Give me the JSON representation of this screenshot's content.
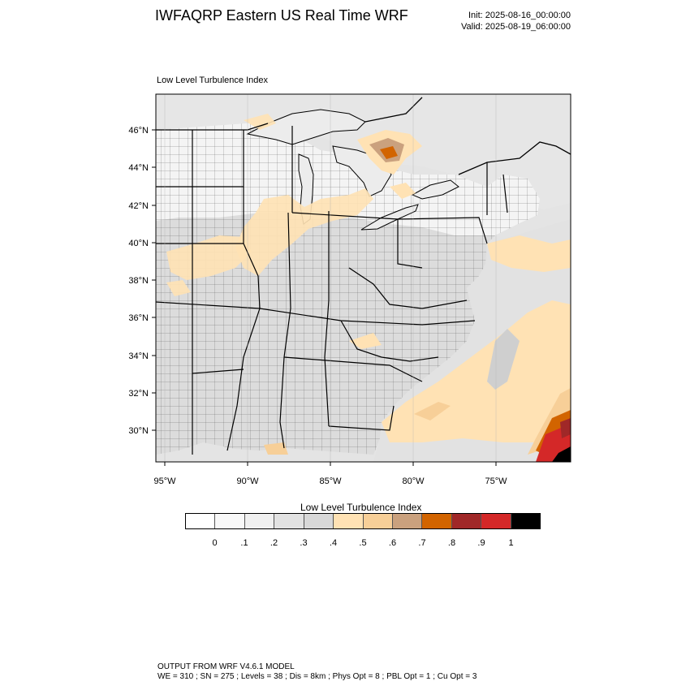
{
  "header": {
    "title": "IWFAQRP Eastern US Real Time WRF",
    "init": "Init: 2025-08-16_00:00:00",
    "valid": "Valid: 2025-08-19_06:00:00"
  },
  "map": {
    "title": "Low Level Turbulence Index",
    "lat_labels": [
      "46°N",
      "44°N",
      "42°N",
      "40°N",
      "38°N",
      "36°N",
      "34°N",
      "32°N",
      "30°N"
    ],
    "lon_labels": [
      "95°W",
      "90°W",
      "85°W",
      "80°W",
      "75°W"
    ],
    "colors": {
      "land": "#dcdcdc",
      "water": "#e4e4e4",
      "light_land": "#f4f4f4",
      "low": "#ffe2b4",
      "mid": "#f7cf98",
      "tan": "#caa17e",
      "orange": "#d26400",
      "brown": "#a02828",
      "red": "#d42828",
      "black": "#000000"
    }
  },
  "colorbar": {
    "title": "Low Level Turbulence Index",
    "colors": [
      "#ffffff",
      "#f8f8f8",
      "#f0f0f0",
      "#e2e2e2",
      "#d8d8d8",
      "#ffe2b4",
      "#f7cf98",
      "#caa17e",
      "#d26400",
      "#a02828",
      "#d42828",
      "#000000"
    ],
    "ticks": [
      "0",
      ".1",
      ".2",
      ".3",
      ".4",
      ".5",
      ".6",
      ".7",
      ".8",
      ".9",
      "1"
    ]
  },
  "footer": {
    "line1": "OUTPUT FROM WRF V4.6.1 MODEL",
    "line2": "WE = 310 ; SN = 275 ; Levels = 38 ; Dis = 8km ; Phys Opt = 8 ; PBL Opt = 1 ; Cu Opt = 3"
  }
}
